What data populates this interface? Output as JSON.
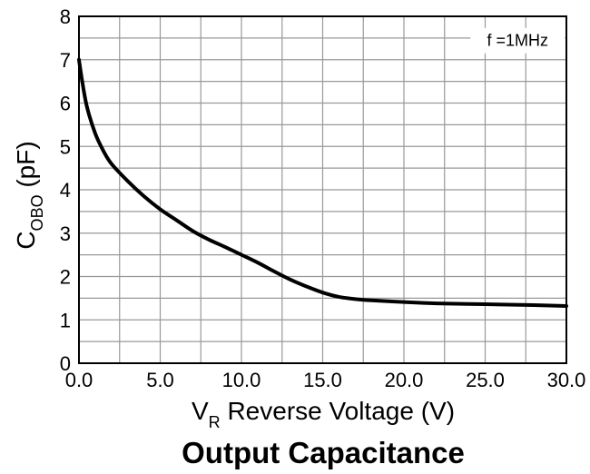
{
  "chart_data": {
    "type": "line",
    "title": "Output Capacitance",
    "xlabel": {
      "main": "V",
      "sub": "R",
      "rest": " Reverse Voltage (V)"
    },
    "ylabel": {
      "main": "C",
      "sub": "OBO",
      "rest": " (pF)"
    },
    "xlim": [
      0,
      30
    ],
    "ylim": [
      0,
      8
    ],
    "x_ticks": [
      0,
      5,
      10,
      15,
      20,
      25,
      30
    ],
    "x_tick_labels": [
      "0.0",
      "5.0",
      "10.0",
      "15.0",
      "20.0",
      "25.0",
      "30.0"
    ],
    "y_ticks": [
      0,
      1,
      2,
      3,
      4,
      5,
      6,
      7,
      8
    ],
    "y_tick_labels": [
      "0",
      "1",
      "2",
      "3",
      "4",
      "5",
      "6",
      "7",
      "8"
    ],
    "grid": true,
    "grid_x_step": 2.5,
    "grid_y_step": 0.5,
    "annotation": "f =1MHz",
    "annotation_position": "top-right",
    "line_color": "#000000",
    "grid_color": "#999999",
    "series": [
      {
        "x": [
          0,
          0.2,
          0.5,
          1,
          1.5,
          2,
          3,
          4,
          5,
          6,
          7,
          8,
          9,
          10,
          11,
          12,
          13,
          14,
          15,
          16,
          17,
          18,
          20,
          22,
          25,
          28,
          30
        ],
        "values": [
          7.0,
          6.5,
          5.9,
          5.3,
          4.9,
          4.6,
          4.2,
          3.85,
          3.55,
          3.3,
          3.05,
          2.85,
          2.68,
          2.5,
          2.32,
          2.12,
          1.93,
          1.77,
          1.63,
          1.53,
          1.48,
          1.45,
          1.41,
          1.38,
          1.36,
          1.34,
          1.32
        ]
      }
    ]
  }
}
